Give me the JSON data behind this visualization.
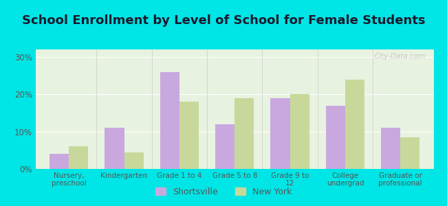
{
  "title": "School Enrollment by Level of School for Female Students",
  "categories": [
    "Nursery,\npreschool",
    "Kindergarten",
    "Grade 1 to 4",
    "Grade 5 to 8",
    "Grade 9 to\n12",
    "College\nundergrad",
    "Graduate or\nprofessional"
  ],
  "shortsville": [
    4.0,
    11.0,
    26.0,
    12.0,
    19.0,
    17.0,
    11.0
  ],
  "new_york": [
    6.0,
    4.5,
    18.0,
    19.0,
    20.0,
    24.0,
    8.5
  ],
  "shortsville_color": "#c9a8e0",
  "new_york_color": "#c8d89a",
  "background_outer": "#00e5e5",
  "background_inner": "#e8f2e0",
  "ylim": [
    0,
    32
  ],
  "yticks": [
    0,
    10,
    20,
    30
  ],
  "ytick_labels": [
    "0%",
    "10%",
    "20%",
    "30%"
  ],
  "bar_width": 0.35,
  "title_fontsize": 13,
  "legend_shortsville": "Shortsville",
  "legend_new_york": "New York"
}
